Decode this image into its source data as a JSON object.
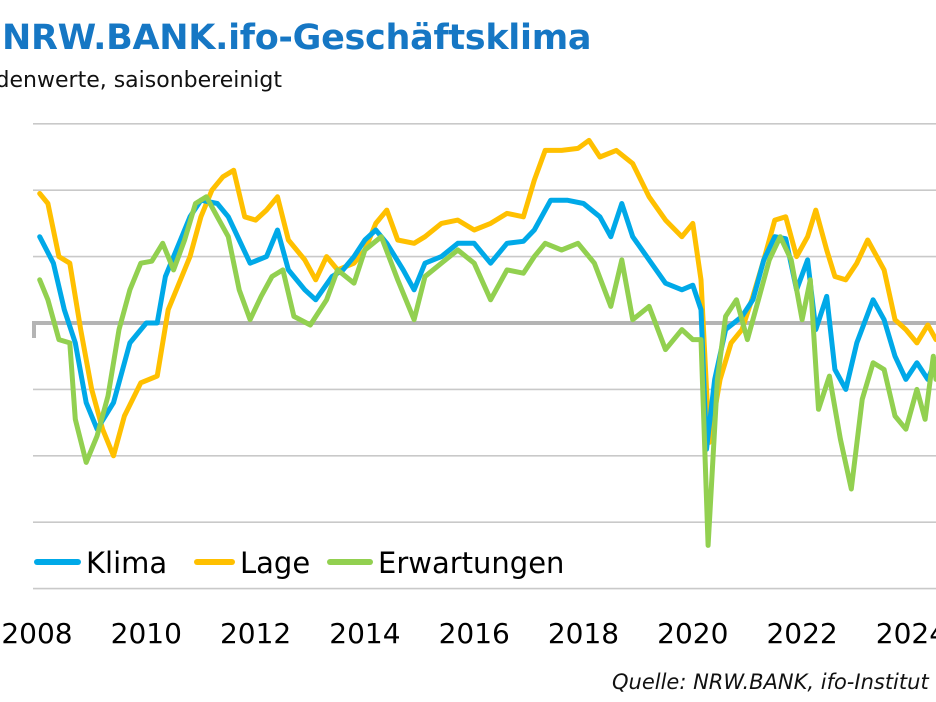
{
  "header": {
    "title": "NRW.BANK.ifo-Geschäftsklima",
    "subtitle": "Saldenwerte, saisonbereinigt"
  },
  "footer": {
    "source": "Quelle: NRW.BANK, ifo-Institut"
  },
  "colors": {
    "Klima": "#00a9e8",
    "Lage": "#ffc000",
    "Erwartungen": "#92d050",
    "title": "#1677c4"
  },
  "chart_data": {
    "type": "line",
    "title": "NRW.BANK.ifo-Geschäftsklima",
    "subtitle": "Saldenwerte, saisonbereinigt",
    "xlabel": "",
    "ylabel": "",
    "xlim": [
      2008,
      2024.44
    ],
    "ylim": [
      -40,
      30
    ],
    "yticks": [
      30,
      20,
      10,
      0,
      -10,
      -20,
      -30,
      -40
    ],
    "xticks": [
      "2008",
      "2010",
      "2012",
      "2014",
      "2016",
      "2018",
      "2020",
      "2022",
      "2024"
    ],
    "grid": true,
    "legend": "bottom-left",
    "series": [
      {
        "name": "Klima",
        "points": [
          [
            2008.05,
            13
          ],
          [
            2008.3,
            9
          ],
          [
            2008.5,
            2
          ],
          [
            2008.7,
            -3
          ],
          [
            2008.9,
            -12
          ],
          [
            2009.1,
            -16
          ],
          [
            2009.4,
            -12
          ],
          [
            2009.7,
            -3
          ],
          [
            2010.0,
            0
          ],
          [
            2010.2,
            0
          ],
          [
            2010.35,
            7
          ],
          [
            2010.6,
            12
          ],
          [
            2010.8,
            16
          ],
          [
            2011.0,
            18.5
          ],
          [
            2011.3,
            18
          ],
          [
            2011.5,
            16
          ],
          [
            2011.7,
            12.5
          ],
          [
            2011.9,
            9
          ],
          [
            2012.2,
            10
          ],
          [
            2012.4,
            14
          ],
          [
            2012.6,
            8
          ],
          [
            2012.9,
            5
          ],
          [
            2013.1,
            3.5
          ],
          [
            2013.4,
            7
          ],
          [
            2013.6,
            8
          ],
          [
            2013.8,
            10
          ],
          [
            2014.0,
            12.5
          ],
          [
            2014.2,
            14
          ],
          [
            2014.4,
            12
          ],
          [
            2014.7,
            8
          ],
          [
            2014.9,
            5
          ],
          [
            2015.1,
            9
          ],
          [
            2015.4,
            10
          ],
          [
            2015.7,
            12
          ],
          [
            2016.0,
            12
          ],
          [
            2016.3,
            9
          ],
          [
            2016.6,
            12
          ],
          [
            2016.9,
            12.3
          ],
          [
            2017.1,
            14
          ],
          [
            2017.4,
            18.5
          ],
          [
            2017.7,
            18.5
          ],
          [
            2018.0,
            18
          ],
          [
            2018.3,
            16
          ],
          [
            2018.5,
            13
          ],
          [
            2018.7,
            18
          ],
          [
            2018.9,
            13
          ],
          [
            2019.2,
            9.5
          ],
          [
            2019.5,
            6
          ],
          [
            2019.8,
            5
          ],
          [
            2020.0,
            5.7
          ],
          [
            2020.15,
            2
          ],
          [
            2020.25,
            -19
          ],
          [
            2020.4,
            -8.5
          ],
          [
            2020.6,
            -1
          ],
          [
            2020.9,
            1
          ],
          [
            2021.1,
            3.5
          ],
          [
            2021.3,
            9.5
          ],
          [
            2021.5,
            13
          ],
          [
            2021.7,
            12.7
          ],
          [
            2021.9,
            5
          ],
          [
            2022.1,
            9.5
          ],
          [
            2022.25,
            -1
          ],
          [
            2022.45,
            4
          ],
          [
            2022.6,
            -7
          ],
          [
            2022.8,
            -10
          ],
          [
            2023.0,
            -3
          ],
          [
            2023.3,
            3.5
          ],
          [
            2023.5,
            0.5
          ],
          [
            2023.7,
            -5
          ],
          [
            2023.9,
            -8.5
          ],
          [
            2024.1,
            -6
          ],
          [
            2024.3,
            -8.5
          ],
          [
            2024.45,
            -5.5
          ]
        ]
      },
      {
        "name": "Lage",
        "points": [
          [
            2008.05,
            19.5
          ],
          [
            2008.2,
            18
          ],
          [
            2008.4,
            10
          ],
          [
            2008.6,
            9
          ],
          [
            2008.8,
            -1
          ],
          [
            2009.0,
            -10
          ],
          [
            2009.2,
            -16
          ],
          [
            2009.4,
            -20
          ],
          [
            2009.6,
            -14
          ],
          [
            2009.9,
            -9
          ],
          [
            2010.2,
            -8
          ],
          [
            2010.4,
            2
          ],
          [
            2010.6,
            6
          ],
          [
            2010.8,
            10
          ],
          [
            2011.0,
            16
          ],
          [
            2011.2,
            20
          ],
          [
            2011.4,
            22
          ],
          [
            2011.6,
            23
          ],
          [
            2011.8,
            16
          ],
          [
            2012.0,
            15.5
          ],
          [
            2012.2,
            17
          ],
          [
            2012.4,
            19
          ],
          [
            2012.6,
            12.5
          ],
          [
            2012.9,
            9.5
          ],
          [
            2013.1,
            6.5
          ],
          [
            2013.3,
            10
          ],
          [
            2013.5,
            8
          ],
          [
            2013.8,
            9
          ],
          [
            2014.0,
            11
          ],
          [
            2014.2,
            15
          ],
          [
            2014.4,
            17
          ],
          [
            2014.6,
            12.5
          ],
          [
            2014.9,
            12
          ],
          [
            2015.1,
            13
          ],
          [
            2015.4,
            15
          ],
          [
            2015.7,
            15.5
          ],
          [
            2016.0,
            14
          ],
          [
            2016.3,
            15
          ],
          [
            2016.6,
            16.5
          ],
          [
            2016.9,
            16
          ],
          [
            2017.1,
            21.5
          ],
          [
            2017.3,
            26
          ],
          [
            2017.6,
            26
          ],
          [
            2017.9,
            26.3
          ],
          [
            2018.1,
            27.5
          ],
          [
            2018.3,
            25
          ],
          [
            2018.6,
            26
          ],
          [
            2018.9,
            24
          ],
          [
            2019.2,
            19
          ],
          [
            2019.5,
            15.5
          ],
          [
            2019.8,
            13
          ],
          [
            2020.0,
            15
          ],
          [
            2020.15,
            6.5
          ],
          [
            2020.3,
            -18
          ],
          [
            2020.5,
            -8.5
          ],
          [
            2020.7,
            -3
          ],
          [
            2020.9,
            -1
          ],
          [
            2021.1,
            4
          ],
          [
            2021.3,
            9.5
          ],
          [
            2021.5,
            15.5
          ],
          [
            2021.7,
            16
          ],
          [
            2021.9,
            10
          ],
          [
            2022.1,
            13
          ],
          [
            2022.25,
            17
          ],
          [
            2022.45,
            11
          ],
          [
            2022.6,
            7
          ],
          [
            2022.8,
            6.5
          ],
          [
            2023.0,
            9
          ],
          [
            2023.2,
            12.5
          ],
          [
            2023.5,
            8
          ],
          [
            2023.7,
            0.5
          ],
          [
            2023.9,
            -1
          ],
          [
            2024.1,
            -3
          ],
          [
            2024.3,
            -0.3
          ],
          [
            2024.45,
            -2.5
          ]
        ]
      },
      {
        "name": "Erwartungen",
        "points": [
          [
            2008.05,
            6.5
          ],
          [
            2008.2,
            3.5
          ],
          [
            2008.4,
            -2.5
          ],
          [
            2008.6,
            -3
          ],
          [
            2008.7,
            -14.5
          ],
          [
            2008.9,
            -21
          ],
          [
            2009.1,
            -17
          ],
          [
            2009.3,
            -11
          ],
          [
            2009.5,
            -1
          ],
          [
            2009.7,
            5
          ],
          [
            2009.9,
            9
          ],
          [
            2010.1,
            9.3
          ],
          [
            2010.3,
            12
          ],
          [
            2010.5,
            8
          ],
          [
            2010.7,
            12.5
          ],
          [
            2010.9,
            18
          ],
          [
            2011.1,
            19
          ],
          [
            2011.3,
            16
          ],
          [
            2011.5,
            13
          ],
          [
            2011.7,
            5
          ],
          [
            2011.9,
            0.5
          ],
          [
            2012.1,
            4
          ],
          [
            2012.3,
            7
          ],
          [
            2012.5,
            8
          ],
          [
            2012.7,
            1
          ],
          [
            2013.0,
            -0.3
          ],
          [
            2013.3,
            3.5
          ],
          [
            2013.5,
            8
          ],
          [
            2013.8,
            6
          ],
          [
            2014.0,
            11
          ],
          [
            2014.3,
            13
          ],
          [
            2014.6,
            6.5
          ],
          [
            2014.9,
            0.5
          ],
          [
            2015.1,
            7
          ],
          [
            2015.4,
            9
          ],
          [
            2015.7,
            11
          ],
          [
            2016.0,
            9
          ],
          [
            2016.3,
            3.5
          ],
          [
            2016.6,
            8
          ],
          [
            2016.9,
            7.5
          ],
          [
            2017.1,
            10
          ],
          [
            2017.3,
            12
          ],
          [
            2017.6,
            11
          ],
          [
            2017.9,
            12
          ],
          [
            2018.2,
            9
          ],
          [
            2018.5,
            2.5
          ],
          [
            2018.7,
            9.5
          ],
          [
            2018.9,
            0.5
          ],
          [
            2019.2,
            2.5
          ],
          [
            2019.5,
            -4
          ],
          [
            2019.8,
            -1
          ],
          [
            2020.0,
            -2.5
          ],
          [
            2020.15,
            -2.5
          ],
          [
            2020.28,
            -33.5
          ],
          [
            2020.45,
            -8.5
          ],
          [
            2020.6,
            1
          ],
          [
            2020.8,
            3.5
          ],
          [
            2021.0,
            -2.5
          ],
          [
            2021.2,
            3.5
          ],
          [
            2021.4,
            9.5
          ],
          [
            2021.6,
            13
          ],
          [
            2021.8,
            9.5
          ],
          [
            2022.0,
            0.5
          ],
          [
            2022.15,
            6.5
          ],
          [
            2022.3,
            -13
          ],
          [
            2022.5,
            -8
          ],
          [
            2022.7,
            -17.5
          ],
          [
            2022.9,
            -25
          ],
          [
            2023.1,
            -11.5
          ],
          [
            2023.3,
            -6
          ],
          [
            2023.5,
            -7
          ],
          [
            2023.7,
            -14
          ],
          [
            2023.9,
            -16
          ],
          [
            2024.1,
            -10
          ],
          [
            2024.25,
            -14.5
          ],
          [
            2024.4,
            -5
          ],
          [
            2024.45,
            -8.5
          ]
        ]
      }
    ]
  }
}
